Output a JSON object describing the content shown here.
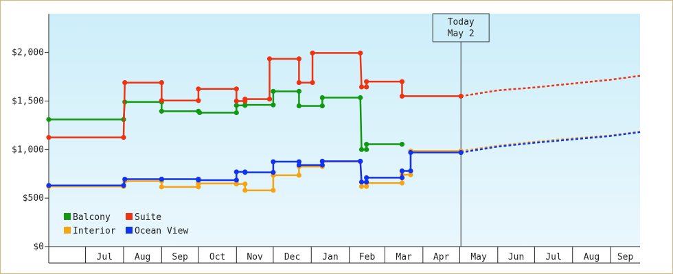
{
  "chart_data": {
    "type": "line",
    "title": "",
    "xlabel": "",
    "ylabel": "",
    "x_ticks": [
      "Jul",
      "Aug",
      "Sep",
      "Oct",
      "Nov",
      "Dec",
      "Jan",
      "Feb",
      "Mar",
      "Apr",
      "May",
      "Jun",
      "Jul",
      "Aug",
      "Sep"
    ],
    "y_ticks": [
      "$0",
      "$500",
      "$1,000",
      "$1,500",
      "$2,000"
    ],
    "ylim": [
      0,
      2400
    ],
    "xlim": [
      "2023-06-01",
      "2024-09-25"
    ],
    "grid": false,
    "step": true,
    "legend_position": "bottom-left",
    "today": {
      "line1": "Today",
      "line2": "May 2",
      "date": "2024-05-02"
    },
    "series": [
      {
        "name": "Balcony",
        "color": "#119911",
        "forecast": false,
        "points": [
          [
            "2023-06-01",
            1310
          ],
          [
            "2023-08-01",
            1310
          ],
          [
            "2023-08-02",
            1490
          ],
          [
            "2023-09-01",
            1490
          ],
          [
            "2023-09-01",
            1395
          ],
          [
            "2023-10-01",
            1395
          ],
          [
            "2023-10-02",
            1380
          ],
          [
            "2023-11-01",
            1380
          ],
          [
            "2023-11-01",
            1455
          ],
          [
            "2023-11-08",
            1455
          ],
          [
            "2023-11-08",
            1460
          ],
          [
            "2023-12-01",
            1460
          ],
          [
            "2023-12-01",
            1600
          ],
          [
            "2023-12-22",
            1600
          ],
          [
            "2023-12-22",
            1450
          ],
          [
            "2024-01-10",
            1450
          ],
          [
            "2024-01-10",
            1535
          ],
          [
            "2024-02-10",
            1535
          ],
          [
            "2024-02-11",
            1000
          ],
          [
            "2024-02-15",
            1000
          ],
          [
            "2024-02-15",
            1055
          ],
          [
            "2024-03-15",
            1055
          ]
        ]
      },
      {
        "name": "Suite",
        "color": "#ee3311",
        "forecast_color": "#ee3311",
        "points": [
          [
            "2023-06-01",
            1125
          ],
          [
            "2023-08-01",
            1125
          ],
          [
            "2023-08-02",
            1690
          ],
          [
            "2023-09-01",
            1690
          ],
          [
            "2023-09-01",
            1505
          ],
          [
            "2023-10-01",
            1505
          ],
          [
            "2023-10-01",
            1625
          ],
          [
            "2023-11-01",
            1625
          ],
          [
            "2023-11-01",
            1500
          ],
          [
            "2023-11-08",
            1500
          ],
          [
            "2023-11-08",
            1520
          ],
          [
            "2023-11-28",
            1520
          ],
          [
            "2023-11-28",
            1935
          ],
          [
            "2023-12-22",
            1935
          ],
          [
            "2023-12-22",
            1690
          ],
          [
            "2024-01-02",
            1690
          ],
          [
            "2024-01-02",
            1995
          ],
          [
            "2024-02-10",
            1995
          ],
          [
            "2024-02-11",
            1645
          ],
          [
            "2024-02-15",
            1645
          ],
          [
            "2024-02-15",
            1700
          ],
          [
            "2024-03-15",
            1700
          ],
          [
            "2024-03-15",
            1550
          ],
          [
            "2024-05-02",
            1550
          ]
        ],
        "forecast": [
          [
            "2024-05-02",
            1550
          ],
          [
            "2024-06-01",
            1610
          ],
          [
            "2024-07-01",
            1640
          ],
          [
            "2024-08-01",
            1680
          ],
          [
            "2024-09-01",
            1720
          ],
          [
            "2024-09-25",
            1760
          ]
        ]
      },
      {
        "name": "Interior",
        "color": "#f5a412",
        "forecast_color": "#f5a412",
        "points": [
          [
            "2023-06-01",
            620
          ],
          [
            "2023-08-01",
            620
          ],
          [
            "2023-08-02",
            675
          ],
          [
            "2023-09-01",
            675
          ],
          [
            "2023-09-01",
            615
          ],
          [
            "2023-10-01",
            615
          ],
          [
            "2023-10-01",
            650
          ],
          [
            "2023-11-01",
            650
          ],
          [
            "2023-11-01",
            645
          ],
          [
            "2023-11-08",
            645
          ],
          [
            "2023-11-08",
            580
          ],
          [
            "2023-12-01",
            580
          ],
          [
            "2023-12-01",
            735
          ],
          [
            "2023-12-22",
            735
          ],
          [
            "2023-12-22",
            825
          ],
          [
            "2024-01-10",
            825
          ],
          [
            "2024-01-10",
            875
          ],
          [
            "2024-02-10",
            875
          ],
          [
            "2024-02-11",
            620
          ],
          [
            "2024-02-15",
            620
          ],
          [
            "2024-02-15",
            655
          ],
          [
            "2024-03-15",
            655
          ],
          [
            "2024-03-15",
            740
          ],
          [
            "2024-03-22",
            740
          ],
          [
            "2024-03-22",
            985
          ],
          [
            "2024-05-02",
            985
          ]
        ],
        "forecast": [
          [
            "2024-05-02",
            985
          ],
          [
            "2024-06-01",
            1040
          ],
          [
            "2024-07-01",
            1080
          ],
          [
            "2024-08-01",
            1115
          ],
          [
            "2024-09-01",
            1145
          ],
          [
            "2024-09-25",
            1185
          ]
        ]
      },
      {
        "name": "Ocean View",
        "color": "#1133ee",
        "forecast_color": "#1133ee",
        "points": [
          [
            "2023-06-01",
            630
          ],
          [
            "2023-08-01",
            630
          ],
          [
            "2023-08-02",
            695
          ],
          [
            "2023-09-01",
            695
          ],
          [
            "2023-09-01",
            695
          ],
          [
            "2023-10-01",
            695
          ],
          [
            "2023-10-01",
            685
          ],
          [
            "2023-11-01",
            685
          ],
          [
            "2023-11-01",
            770
          ],
          [
            "2023-11-08",
            770
          ],
          [
            "2023-11-08",
            765
          ],
          [
            "2023-12-01",
            765
          ],
          [
            "2023-12-01",
            875
          ],
          [
            "2023-12-22",
            875
          ],
          [
            "2023-12-22",
            840
          ],
          [
            "2024-01-10",
            840
          ],
          [
            "2024-01-10",
            880
          ],
          [
            "2024-02-10",
            880
          ],
          [
            "2024-02-11",
            665
          ],
          [
            "2024-02-15",
            665
          ],
          [
            "2024-02-15",
            710
          ],
          [
            "2024-03-15",
            710
          ],
          [
            "2024-03-15",
            780
          ],
          [
            "2024-03-22",
            780
          ],
          [
            "2024-03-22",
            970
          ],
          [
            "2024-05-02",
            970
          ]
        ],
        "forecast": [
          [
            "2024-05-02",
            970
          ],
          [
            "2024-06-01",
            1030
          ],
          [
            "2024-07-01",
            1070
          ],
          [
            "2024-08-01",
            1105
          ],
          [
            "2024-09-01",
            1140
          ],
          [
            "2024-09-25",
            1180
          ]
        ]
      }
    ],
    "colors": {
      "background_top": "#cdeef9",
      "background_bottom": "#eaf7fd",
      "frame_border": "#e0b57a",
      "axis": "#222222"
    }
  }
}
